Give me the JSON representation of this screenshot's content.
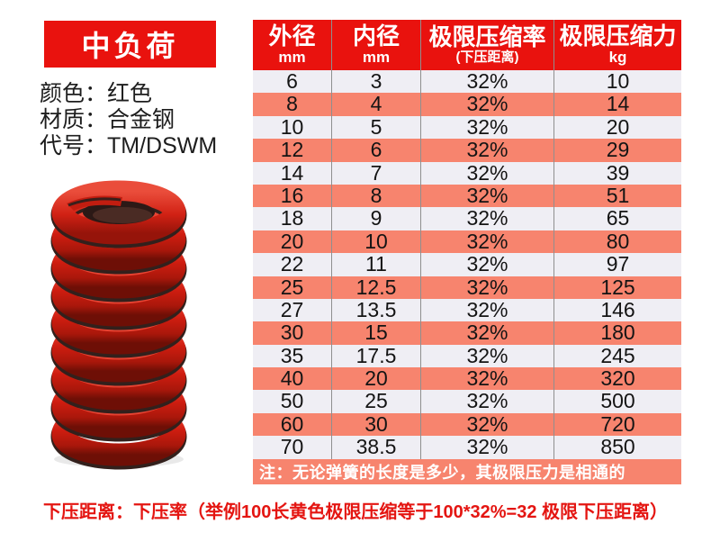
{
  "badge": {
    "label": "中负荷"
  },
  "product_info": {
    "lines": [
      "颜色：红色",
      "材质：合金钢",
      "代号：TM/DSWM"
    ]
  },
  "spring_image": {
    "description": "red-die-spring-photo",
    "coil_color": "#cf1d10"
  },
  "table": {
    "columns": [
      {
        "title": "外径",
        "unit": "mm"
      },
      {
        "title": "内径",
        "unit": "mm"
      },
      {
        "title": "极限压缩率",
        "unit": "(下压距离)"
      },
      {
        "title": "极限压缩力",
        "unit": "kg"
      }
    ],
    "rows": [
      [
        "6",
        "3",
        "32%",
        "10"
      ],
      [
        "8",
        "4",
        "32%",
        "14"
      ],
      [
        "10",
        "5",
        "32%",
        "20"
      ],
      [
        "12",
        "6",
        "32%",
        "29"
      ],
      [
        "14",
        "7",
        "32%",
        "39"
      ],
      [
        "16",
        "8",
        "32%",
        "51"
      ],
      [
        "18",
        "9",
        "32%",
        "65"
      ],
      [
        "20",
        "10",
        "32%",
        "80"
      ],
      [
        "22",
        "11",
        "32%",
        "97"
      ],
      [
        "25",
        "12.5",
        "32%",
        "125"
      ],
      [
        "27",
        "13.5",
        "32%",
        "146"
      ],
      [
        "30",
        "15",
        "32%",
        "180"
      ],
      [
        "35",
        "17.5",
        "32%",
        "245"
      ],
      [
        "40",
        "20",
        "32%",
        "320"
      ],
      [
        "50",
        "25",
        "32%",
        "500"
      ],
      [
        "60",
        "30",
        "32%",
        "720"
      ],
      [
        "70",
        "38.5",
        "32%",
        "850"
      ]
    ],
    "note": "注：无论弹簧的长度是多少，其极限压力是相通的"
  },
  "footer_note": "下压距离：下压率（举例100长黄色极限压缩等于100*32%=32 极限下压距离）",
  "colors": {
    "header_red": "#e9120e",
    "stripe_salmon": "#f7846e",
    "stripe_light": "#efeef4",
    "footer_red": "#e41511"
  }
}
